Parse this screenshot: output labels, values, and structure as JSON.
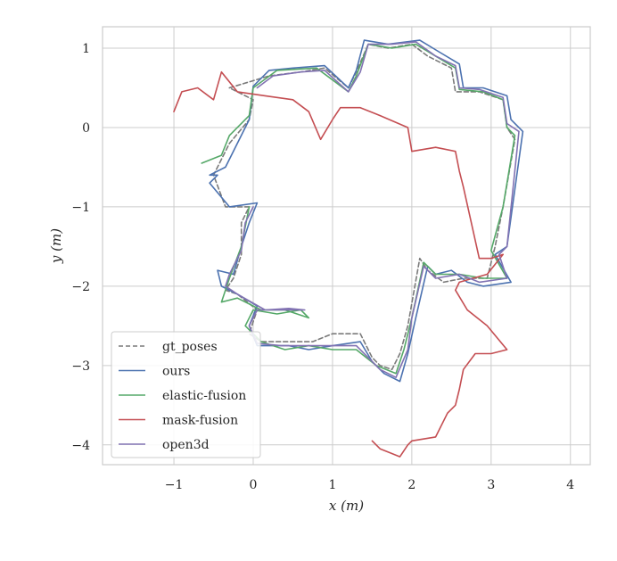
{
  "chart_data": {
    "type": "line",
    "xlabel": "x (m)",
    "ylabel": "y (m)",
    "xlim": [
      -1.9,
      4.25
    ],
    "ylim": [
      -4.25,
      1.27
    ],
    "xticks": [
      -1,
      0,
      1,
      2,
      3,
      4
    ],
    "yticks": [
      1,
      0,
      -1,
      -2,
      -3,
      -4
    ],
    "xtick_labels": [
      "−1",
      "0",
      "1",
      "2",
      "3",
      "4"
    ],
    "ytick_labels": [
      "1",
      "0",
      "−1",
      "−2",
      "−3",
      "−4"
    ],
    "grid": true,
    "legend_position": "bottom-left",
    "series": [
      {
        "name": "gt_poses",
        "color": "#7a7a7a",
        "dashed": true,
        "points": [
          [
            -0.3,
            0.5
          ],
          [
            0.2,
            0.65
          ],
          [
            0.6,
            0.7
          ],
          [
            0.9,
            0.75
          ],
          [
            1.2,
            0.5
          ],
          [
            1.3,
            0.7
          ],
          [
            1.45,
            1.05
          ],
          [
            1.7,
            1.0
          ],
          [
            2.0,
            1.05
          ],
          [
            2.2,
            0.9
          ],
          [
            2.5,
            0.75
          ],
          [
            2.55,
            0.45
          ],
          [
            2.85,
            0.45
          ],
          [
            3.15,
            0.35
          ],
          [
            3.2,
            0.0
          ],
          [
            3.3,
            -0.15
          ],
          [
            3.15,
            -1.0
          ],
          [
            3.05,
            -1.5
          ],
          [
            2.95,
            -1.9
          ],
          [
            2.65,
            -1.9
          ],
          [
            2.4,
            -1.95
          ],
          [
            2.2,
            -1.8
          ],
          [
            2.1,
            -1.65
          ],
          [
            1.95,
            -2.5
          ],
          [
            1.85,
            -2.85
          ],
          [
            1.75,
            -3.05
          ],
          [
            1.6,
            -3.0
          ],
          [
            1.5,
            -2.9
          ],
          [
            1.35,
            -2.6
          ],
          [
            1.0,
            -2.6
          ],
          [
            0.75,
            -2.7
          ],
          [
            0.45,
            -2.7
          ],
          [
            0.1,
            -2.7
          ],
          [
            -0.05,
            -2.6
          ],
          [
            0.05,
            -2.3
          ],
          [
            -0.2,
            -2.1
          ],
          [
            -0.35,
            -2.05
          ],
          [
            -0.25,
            -1.9
          ],
          [
            -0.15,
            -1.6
          ],
          [
            -0.15,
            -1.2
          ],
          [
            -0.05,
            -1.0
          ],
          [
            -0.35,
            -1.0
          ],
          [
            -0.5,
            -0.6
          ],
          [
            -0.4,
            -0.4
          ],
          [
            -0.3,
            -0.2
          ],
          [
            -0.05,
            0.1
          ],
          [
            0.0,
            0.35
          ],
          [
            -0.3,
            0.5
          ]
        ]
      },
      {
        "name": "ours",
        "color": "#4c72b0",
        "dashed": false,
        "points": [
          [
            0.0,
            0.52
          ],
          [
            0.2,
            0.72
          ],
          [
            0.5,
            0.75
          ],
          [
            0.9,
            0.78
          ],
          [
            1.2,
            0.5
          ],
          [
            1.3,
            0.72
          ],
          [
            1.4,
            1.1
          ],
          [
            1.7,
            1.05
          ],
          [
            2.1,
            1.1
          ],
          [
            2.35,
            0.95
          ],
          [
            2.6,
            0.8
          ],
          [
            2.65,
            0.5
          ],
          [
            2.9,
            0.5
          ],
          [
            3.2,
            0.4
          ],
          [
            3.25,
            0.1
          ],
          [
            3.4,
            -0.05
          ],
          [
            3.2,
            -1.5
          ],
          [
            3.05,
            -1.6
          ],
          [
            3.25,
            -1.95
          ],
          [
            2.9,
            -2.0
          ],
          [
            2.7,
            -1.95
          ],
          [
            2.5,
            -1.8
          ],
          [
            2.3,
            -1.85
          ],
          [
            2.2,
            -1.75
          ],
          [
            2.05,
            -2.4
          ],
          [
            1.95,
            -2.85
          ],
          [
            1.85,
            -3.2
          ],
          [
            1.65,
            -3.1
          ],
          [
            1.5,
            -2.95
          ],
          [
            1.35,
            -2.7
          ],
          [
            1.0,
            -2.75
          ],
          [
            0.7,
            -2.8
          ],
          [
            0.45,
            -2.75
          ],
          [
            0.05,
            -2.75
          ],
          [
            -0.05,
            -2.5
          ],
          [
            0.05,
            -2.25
          ],
          [
            -0.2,
            -2.1
          ],
          [
            -0.4,
            -2.0
          ],
          [
            -0.45,
            -1.8
          ],
          [
            -0.25,
            -1.85
          ],
          [
            -0.15,
            -1.5
          ],
          [
            -0.05,
            -1.2
          ],
          [
            0.05,
            -0.95
          ],
          [
            -0.3,
            -1.0
          ],
          [
            -0.55,
            -0.7
          ],
          [
            -0.45,
            -0.6
          ],
          [
            -0.55,
            -0.6
          ],
          [
            -0.35,
            -0.5
          ],
          [
            -0.05,
            0.1
          ],
          [
            0.0,
            0.52
          ]
        ]
      },
      {
        "name": "elastic-fusion",
        "color": "#55a868",
        "dashed": false,
        "points": [
          [
            -0.65,
            -0.45
          ],
          [
            -0.4,
            -0.35
          ],
          [
            -0.3,
            -0.1
          ],
          [
            -0.05,
            0.15
          ],
          [
            0.0,
            0.5
          ],
          [
            0.3,
            0.72
          ],
          [
            0.8,
            0.75
          ],
          [
            1.2,
            0.45
          ],
          [
            1.3,
            0.65
          ],
          [
            1.45,
            1.05
          ],
          [
            1.75,
            1.0
          ],
          [
            2.05,
            1.05
          ],
          [
            2.3,
            0.9
          ],
          [
            2.55,
            0.75
          ],
          [
            2.6,
            0.48
          ],
          [
            2.9,
            0.45
          ],
          [
            3.15,
            0.35
          ],
          [
            3.2,
            0.0
          ],
          [
            3.3,
            -0.1
          ],
          [
            3.15,
            -1.0
          ],
          [
            3.0,
            -1.55
          ],
          [
            3.2,
            -1.9
          ],
          [
            2.9,
            -1.9
          ],
          [
            2.6,
            -1.85
          ],
          [
            2.3,
            -1.85
          ],
          [
            2.15,
            -1.7
          ],
          [
            2.0,
            -2.4
          ],
          [
            1.9,
            -2.8
          ],
          [
            1.8,
            -3.1
          ],
          [
            1.55,
            -3.0
          ],
          [
            1.3,
            -2.8
          ],
          [
            1.0,
            -2.8
          ],
          [
            0.7,
            -2.75
          ],
          [
            0.4,
            -2.8
          ],
          [
            0.1,
            -2.7
          ],
          [
            -0.1,
            -2.5
          ],
          [
            0.0,
            -2.3
          ],
          [
            0.3,
            -2.35
          ],
          [
            0.6,
            -2.3
          ],
          [
            0.7,
            -2.4
          ],
          [
            0.4,
            -2.3
          ],
          [
            0.1,
            -2.3
          ],
          [
            -0.2,
            -2.15
          ],
          [
            -0.4,
            -2.2
          ],
          [
            -0.3,
            -1.9
          ],
          [
            -0.15,
            -1.5
          ],
          [
            -0.05,
            -1.0
          ]
        ]
      },
      {
        "name": "mask-fusion",
        "color": "#c44e52",
        "dashed": false,
        "points": [
          [
            -1.0,
            0.2
          ],
          [
            -0.9,
            0.45
          ],
          [
            -0.7,
            0.5
          ],
          [
            -0.5,
            0.35
          ],
          [
            -0.4,
            0.7
          ],
          [
            -0.2,
            0.45
          ],
          [
            0.15,
            0.4
          ],
          [
            0.5,
            0.35
          ],
          [
            0.7,
            0.2
          ],
          [
            0.85,
            -0.15
          ],
          [
            1.0,
            0.1
          ],
          [
            1.1,
            0.25
          ],
          [
            1.35,
            0.25
          ],
          [
            1.6,
            0.15
          ],
          [
            1.95,
            0.0
          ],
          [
            2.0,
            -0.3
          ],
          [
            2.3,
            -0.25
          ],
          [
            2.55,
            -0.3
          ],
          [
            2.6,
            -0.55
          ],
          [
            2.65,
            -0.75
          ],
          [
            2.75,
            -1.2
          ],
          [
            2.85,
            -1.65
          ],
          [
            3.0,
            -1.65
          ],
          [
            3.15,
            -1.6
          ],
          [
            2.95,
            -1.85
          ],
          [
            2.6,
            -1.95
          ],
          [
            2.55,
            -2.05
          ],
          [
            2.7,
            -2.3
          ],
          [
            2.95,
            -2.5
          ],
          [
            3.2,
            -2.8
          ],
          [
            3.0,
            -2.85
          ],
          [
            2.8,
            -2.85
          ],
          [
            2.65,
            -3.05
          ],
          [
            2.6,
            -3.3
          ],
          [
            2.55,
            -3.5
          ],
          [
            2.45,
            -3.6
          ],
          [
            2.3,
            -3.9
          ],
          [
            2.0,
            -3.95
          ],
          [
            1.95,
            -4.0
          ],
          [
            1.85,
            -4.15
          ],
          [
            1.6,
            -4.05
          ],
          [
            1.5,
            -3.95
          ]
        ]
      },
      {
        "name": "open3d",
        "color": "#8172b2",
        "dashed": false,
        "points": [
          [
            0.05,
            0.5
          ],
          [
            0.25,
            0.65
          ],
          [
            0.6,
            0.7
          ],
          [
            0.9,
            0.72
          ],
          [
            1.2,
            0.45
          ],
          [
            1.35,
            0.7
          ],
          [
            1.45,
            1.05
          ],
          [
            1.75,
            1.05
          ],
          [
            2.05,
            1.08
          ],
          [
            2.3,
            0.9
          ],
          [
            2.55,
            0.78
          ],
          [
            2.6,
            0.5
          ],
          [
            2.85,
            0.48
          ],
          [
            3.15,
            0.38
          ],
          [
            3.2,
            0.05
          ],
          [
            3.35,
            -0.05
          ],
          [
            3.2,
            -1.5
          ],
          [
            3.1,
            -1.6
          ],
          [
            3.2,
            -1.9
          ],
          [
            2.85,
            -1.95
          ],
          [
            2.6,
            -1.85
          ],
          [
            2.3,
            -1.9
          ],
          [
            2.15,
            -1.75
          ],
          [
            2.0,
            -2.4
          ],
          [
            1.95,
            -2.8
          ],
          [
            1.8,
            -3.15
          ],
          [
            1.6,
            -3.05
          ],
          [
            1.45,
            -2.9
          ],
          [
            1.3,
            -2.75
          ],
          [
            1.0,
            -2.75
          ],
          [
            0.7,
            -2.75
          ],
          [
            0.35,
            -2.75
          ],
          [
            0.05,
            -2.72
          ],
          [
            -0.05,
            -2.5
          ],
          [
            0.05,
            -2.3
          ],
          [
            0.4,
            -2.3
          ],
          [
            0.65,
            -2.3
          ],
          [
            0.45,
            -2.28
          ],
          [
            0.15,
            -2.3
          ],
          [
            -0.2,
            -2.1
          ],
          [
            -0.35,
            -2.0
          ],
          [
            -0.3,
            -1.85
          ],
          [
            -0.15,
            -1.55
          ],
          [
            -0.1,
            -1.2
          ],
          [
            0.0,
            -1.0
          ]
        ]
      }
    ]
  }
}
